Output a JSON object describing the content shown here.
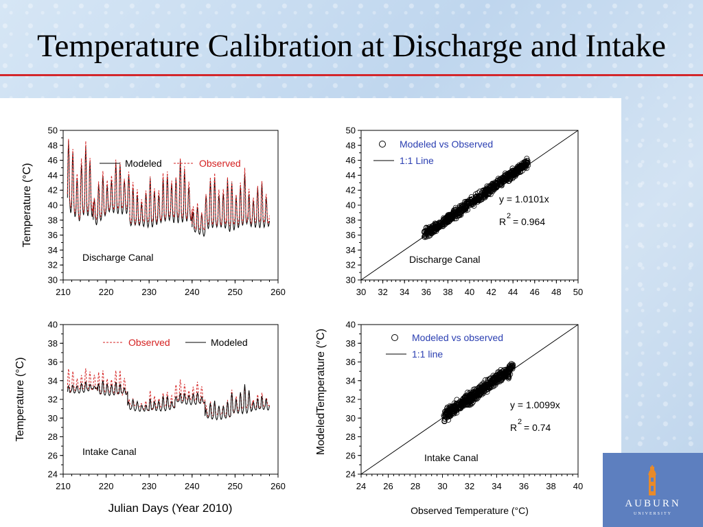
{
  "slide": {
    "title": "Temperature Calibration at Discharge and Intake"
  },
  "logo": {
    "name": "AUBURN",
    "sub": "UNIVERSITY"
  },
  "chart_data": [
    {
      "type": "line",
      "ylabel": "Temperature (°C)",
      "xlabel": "",
      "xlim": [
        210,
        260
      ],
      "ylim": [
        30,
        50
      ],
      "xticks": [
        210,
        220,
        230,
        240,
        250,
        260
      ],
      "yticks": [
        30,
        32,
        34,
        36,
        38,
        40,
        42,
        44,
        46,
        48,
        50
      ],
      "annotation": "Discharge Canal",
      "legend": "top",
      "series": [
        {
          "name": "Modeled",
          "color": "#000000",
          "style": "solid",
          "segments": [
            [
              211,
              41,
              8,
              39
            ],
            [
              214,
              40,
              8,
              40
            ],
            [
              217,
              38,
              5,
              40
            ],
            [
              221,
              40,
              6,
              40
            ],
            [
              225.5,
              38,
              4.5,
              38
            ],
            [
              230,
              38,
              5.5,
              39
            ],
            [
              235,
              39,
              7,
              39
            ],
            [
              240,
              37,
              3,
              36.5
            ],
            [
              243,
              38,
              6,
              38
            ],
            [
              248,
              37.5,
              6,
              38.5
            ],
            [
              253,
              38,
              5,
              38
            ]
          ],
          "period": 1.0
        },
        {
          "name": "Observed",
          "color": "#d42020",
          "style": "dashed",
          "segments": [
            [
              211,
              41.5,
              8,
              39.5
            ],
            [
              214,
              40.5,
              8,
              40.5
            ],
            [
              217,
              38.5,
              5,
              40.5
            ],
            [
              221,
              40.5,
              6,
              40.5
            ],
            [
              225.5,
              38.5,
              4.5,
              38.5
            ],
            [
              230,
              38.5,
              5.5,
              39.5
            ],
            [
              235,
              39.5,
              7,
              39.5
            ],
            [
              240,
              37.5,
              3,
              37
            ],
            [
              243,
              38.5,
              6,
              38.5
            ],
            [
              248,
              38,
              6,
              39
            ],
            [
              253,
              38.5,
              5,
              38.5
            ]
          ],
          "period": 1.0
        }
      ]
    },
    {
      "type": "scatter",
      "xlim": [
        30,
        50
      ],
      "ylim": [
        30,
        50
      ],
      "xticks": [
        30,
        32,
        34,
        36,
        38,
        40,
        42,
        44,
        46,
        48,
        50
      ],
      "yticks": [
        30,
        32,
        34,
        36,
        38,
        40,
        42,
        44,
        46,
        48,
        50
      ],
      "xlabel": "",
      "ylabel": "",
      "annotation": "Discharge Canal",
      "fit": {
        "equation": "y = 1.0101x",
        "r2_label": "R",
        "r2_value": "= 0.964",
        "slope": 1.0101
      },
      "cloud": {
        "x_min": 35.8,
        "x_max": 45.4,
        "spread": 0.9,
        "count": 650
      },
      "series": [
        {
          "name": "Modeled vs Observed",
          "marker": "open-circle"
        },
        {
          "name": "1:1 Line",
          "marker": "line"
        }
      ]
    },
    {
      "type": "line",
      "ylabel": "Temperature (°C)",
      "xlabel": "Julian Days (Year 2010)",
      "xlim": [
        210,
        260
      ],
      "ylim": [
        24,
        40
      ],
      "xticks": [
        210,
        220,
        230,
        240,
        250,
        260
      ],
      "yticks": [
        24,
        26,
        28,
        30,
        32,
        34,
        36,
        38,
        40
      ],
      "annotation": "Intake Canal",
      "legend": "top",
      "series": [
        {
          "name": "Observed",
          "color": "#d42020",
          "style": "dashed",
          "segments": [
            [
              211,
              33.2,
              2,
              33.5
            ],
            [
              218,
              33,
              2.2,
              33
            ],
            [
              225,
              31.5,
              0.8,
              31
            ],
            [
              230,
              31.2,
              1.6,
              31.5
            ],
            [
              236,
              32.3,
              1.8,
              32
            ],
            [
              243,
              30.5,
              1.4,
              30.5
            ],
            [
              249,
              31,
              2.2,
              31.5
            ],
            [
              254,
              31.3,
              1.2,
              31.5
            ]
          ],
          "period": 1.0
        },
        {
          "name": "Modeled",
          "color": "#000000",
          "style": "solid",
          "segments": [
            [
              211,
              32.8,
              0.8,
              33.2
            ],
            [
              218,
              32.8,
              1.2,
              32.7
            ],
            [
              225,
              31.2,
              0.8,
              30.8
            ],
            [
              230,
              31,
              1.2,
              31.2
            ],
            [
              236,
              31.8,
              1,
              31.7
            ],
            [
              243,
              30.2,
              1.6,
              30.3
            ],
            [
              249,
              30.8,
              2.4,
              31.2
            ],
            [
              254,
              31,
              1.4,
              31.2
            ]
          ],
          "period": 1.0
        }
      ]
    },
    {
      "type": "scatter",
      "xlim": [
        24,
        40
      ],
      "ylim": [
        24,
        40
      ],
      "xticks": [
        24,
        26,
        28,
        30,
        32,
        34,
        36,
        38,
        40
      ],
      "yticks": [
        24,
        26,
        28,
        30,
        32,
        34,
        36,
        38,
        40
      ],
      "xlabel": "Observed Temperature (°C)",
      "ylabel": "ModeledTemperature (°C)",
      "annotation": "Intake Canal",
      "fit": {
        "equation": "y = 1.0099x",
        "r2_label": "R",
        "r2_value": "= 0.74",
        "slope": 1.0099
      },
      "cloud": {
        "x_min": 30.1,
        "x_max": 35.2,
        "spread": 0.9,
        "count": 550
      },
      "series": [
        {
          "name": "Modeled vs observed",
          "marker": "open-circle"
        },
        {
          "name": "1:1 line",
          "marker": "line"
        }
      ]
    }
  ]
}
